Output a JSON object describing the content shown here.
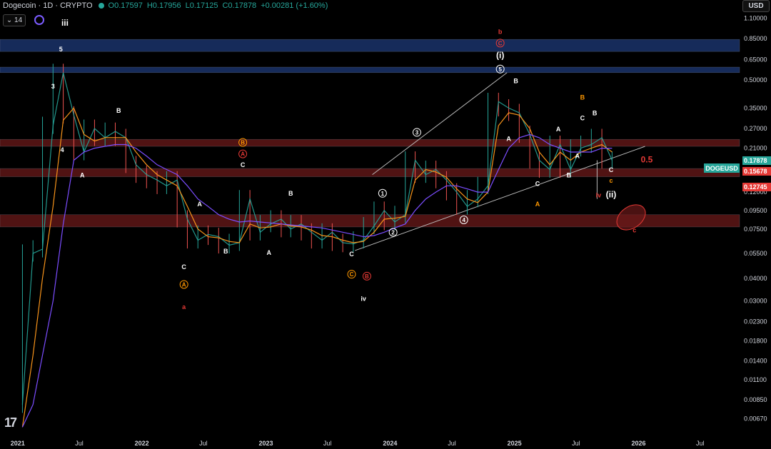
{
  "header": {
    "symbol": "Dogecoin · 1D · CRYPTO",
    "ohlc": [
      "O0.17597",
      "H0.17956",
      "L0.17125",
      "C0.17878",
      "+0.00281 (+1.60%)"
    ]
  },
  "toolbar": {
    "currency": "USD",
    "interval": "⌄ 14"
  },
  "logo": "17",
  "colors": {
    "up": "#26a69a",
    "down": "#ef5350",
    "ma_fast": "#f7931a",
    "ma_slow": "#7b4dff",
    "wave_white": "#ffffff",
    "wave_red": "#e53935",
    "wave_orange": "#ff9800"
  },
  "chart_data": {
    "type": "line",
    "scale": "log",
    "ylim": [
      0.0055,
      1.2
    ],
    "y_ticks": [
      "1.10000",
      "0.85000",
      "0.65000",
      "0.50000",
      "0.35000",
      "0.27000",
      "0.21000",
      "0.16000",
      "0.12000",
      "0.09500",
      "0.07500",
      "0.05500",
      "0.04000",
      "0.03000",
      "0.02300",
      "0.01800",
      "0.01400",
      "0.01100",
      "0.00850",
      "0.00670"
    ],
    "x_ticks": [
      "2021",
      "Jul",
      "2022",
      "Jul",
      "2023",
      "Jul",
      "2024",
      "Jul",
      "2025",
      "Jul",
      "2026",
      "Jul"
    ],
    "price_series": {
      "name": "DOGEUSD",
      "x": [
        "2021-01",
        "2021-02",
        "2021-03",
        "2021-04",
        "2021-05",
        "2021-06",
        "2021-07",
        "2021-08",
        "2021-09",
        "2021-10",
        "2021-11",
        "2021-12",
        "2022-01",
        "2022-02",
        "2022-03",
        "2022-04",
        "2022-05",
        "2022-06",
        "2022-07",
        "2022-08",
        "2022-09",
        "2022-10",
        "2022-11",
        "2022-12",
        "2023-01",
        "2023-02",
        "2023-03",
        "2023-04",
        "2023-05",
        "2023-06",
        "2023-07",
        "2023-08",
        "2023-09",
        "2023-10",
        "2023-11",
        "2023-12",
        "2024-01",
        "2024-02",
        "2024-03",
        "2024-04",
        "2024-05",
        "2024-06",
        "2024-07",
        "2024-08",
        "2024-09",
        "2024-10",
        "2024-11",
        "2024-12",
        "2025-01",
        "2025-02",
        "2025-03",
        "2025-04",
        "2025-05",
        "2025-06",
        "2025-07",
        "2025-08",
        "2025-09",
        "2025-10"
      ],
      "y": [
        0.008,
        0.055,
        0.058,
        0.28,
        0.55,
        0.32,
        0.2,
        0.27,
        0.24,
        0.26,
        0.24,
        0.17,
        0.15,
        0.14,
        0.13,
        0.14,
        0.085,
        0.065,
        0.07,
        0.068,
        0.061,
        0.063,
        0.11,
        0.072,
        0.08,
        0.085,
        0.075,
        0.08,
        0.072,
        0.065,
        0.072,
        0.063,
        0.062,
        0.065,
        0.078,
        0.095,
        0.082,
        0.09,
        0.18,
        0.15,
        0.16,
        0.14,
        0.12,
        0.1,
        0.11,
        0.13,
        0.38,
        0.35,
        0.33,
        0.25,
        0.18,
        0.16,
        0.22,
        0.16,
        0.21,
        0.22,
        0.24,
        0.18
      ]
    },
    "ma_fast": {
      "y": [
        0.006,
        0.015,
        0.04,
        0.1,
        0.3,
        0.35,
        0.25,
        0.23,
        0.24,
        0.24,
        0.24,
        0.2,
        0.17,
        0.15,
        0.14,
        0.13,
        0.1,
        0.075,
        0.068,
        0.067,
        0.064,
        0.063,
        0.08,
        0.076,
        0.077,
        0.08,
        0.078,
        0.077,
        0.074,
        0.069,
        0.068,
        0.065,
        0.063,
        0.064,
        0.072,
        0.085,
        0.086,
        0.088,
        0.14,
        0.16,
        0.155,
        0.145,
        0.125,
        0.11,
        0.105,
        0.12,
        0.28,
        0.33,
        0.32,
        0.27,
        0.2,
        0.17,
        0.2,
        0.18,
        0.2,
        0.21,
        0.22,
        0.2
      ]
    },
    "ma_slow": {
      "y": [
        0.006,
        0.008,
        0.015,
        0.03,
        0.08,
        0.18,
        0.2,
        0.21,
        0.215,
        0.22,
        0.22,
        0.21,
        0.19,
        0.17,
        0.16,
        0.15,
        0.13,
        0.11,
        0.1,
        0.09,
        0.085,
        0.082,
        0.083,
        0.082,
        0.081,
        0.08,
        0.079,
        0.078,
        0.077,
        0.076,
        0.074,
        0.072,
        0.07,
        0.068,
        0.069,
        0.072,
        0.076,
        0.08,
        0.095,
        0.11,
        0.12,
        0.13,
        0.13,
        0.125,
        0.12,
        0.12,
        0.16,
        0.21,
        0.24,
        0.25,
        0.24,
        0.22,
        0.21,
        0.2,
        0.2,
        0.2,
        0.21,
        0.21
      ]
    },
    "zones": [
      {
        "from": 0.72,
        "to": 0.84,
        "color": "#1e3a78"
      },
      {
        "from": 0.55,
        "to": 0.59,
        "color": "#1e3a78"
      },
      {
        "from": 0.215,
        "to": 0.235,
        "color": "#6b1a1a"
      },
      {
        "from": 0.146,
        "to": 0.162,
        "color": "#6b1a1a"
      },
      {
        "from": 0.077,
        "to": 0.09,
        "color": "#6b1a1a"
      }
    ],
    "price_tags": [
      {
        "label": "DOGEUSD",
        "value": "0.17878",
        "color": "#26a69a"
      },
      {
        "label": "",
        "value": "0.15678",
        "color": "#e53935"
      },
      {
        "label": "",
        "value": "0.12745",
        "color": "#e53935"
      }
    ],
    "annotations": [
      {
        "text": "iii",
        "color": "#ffffff",
        "x": "2021-05-20",
        "y": 1.0,
        "style": "plain"
      },
      {
        "text": "5",
        "color": "#ffffff",
        "x": "2021-05-08",
        "y": 0.72,
        "style": "plain"
      },
      {
        "text": "3",
        "color": "#ffffff",
        "x": "2021-04-15",
        "y": 0.45,
        "style": "plain"
      },
      {
        "text": "4",
        "color": "#ffffff",
        "x": "2021-05-12",
        "y": 0.2,
        "style": "plain"
      },
      {
        "text": "B",
        "color": "#ffffff",
        "x": "2021-10-25",
        "y": 0.33,
        "style": "plain"
      },
      {
        "text": "A",
        "color": "#ffffff",
        "x": "2021-07-10",
        "y": 0.145,
        "style": "plain"
      },
      {
        "text": "A",
        "color": "#ffffff",
        "x": "2022-06-20",
        "y": 0.1,
        "style": "plain"
      },
      {
        "text": "C",
        "color": "#ffffff",
        "x": "2022-05-05",
        "y": 0.045,
        "style": "plain"
      },
      {
        "text": "A",
        "color": "#ff9800",
        "x": "2022-05-05",
        "y": 0.036,
        "style": "circle"
      },
      {
        "text": "a",
        "color": "#e53935",
        "x": "2022-05-05",
        "y": 0.027,
        "style": "plain"
      },
      {
        "text": "B",
        "color": "#ffffff",
        "x": "2022-09-05",
        "y": 0.055,
        "style": "plain"
      },
      {
        "text": "B",
        "color": "#ff9800",
        "x": "2022-10-25",
        "y": 0.22,
        "style": "circle"
      },
      {
        "text": "A",
        "color": "#e53935",
        "x": "2022-10-25",
        "y": 0.19,
        "style": "circle"
      },
      {
        "text": "C",
        "color": "#ffffff",
        "x": "2022-10-25",
        "y": 0.165,
        "style": "plain"
      },
      {
        "text": "A",
        "color": "#ffffff",
        "x": "2023-01-10",
        "y": 0.054,
        "style": "plain"
      },
      {
        "text": "B",
        "color": "#ffffff",
        "x": "2023-03-15",
        "y": 0.115,
        "style": "plain"
      },
      {
        "text": "C",
        "color": "#ffffff",
        "x": "2023-09-10",
        "y": 0.053,
        "style": "plain"
      },
      {
        "text": "C",
        "color": "#ff9800",
        "x": "2023-09-10",
        "y": 0.041,
        "style": "circle"
      },
      {
        "text": "B",
        "color": "#e53935",
        "x": "2023-10-25",
        "y": 0.04,
        "style": "circle"
      },
      {
        "text": "iv",
        "color": "#ffffff",
        "x": "2023-10-15",
        "y": 0.03,
        "style": "plain"
      },
      {
        "text": "1",
        "color": "#ffffff",
        "x": "2023-12-10",
        "y": 0.115,
        "style": "circle"
      },
      {
        "text": "2",
        "color": "#ffffff",
        "x": "2024-01-10",
        "y": 0.07,
        "style": "circle"
      },
      {
        "text": "3",
        "color": "#ffffff",
        "x": "2024-03-20",
        "y": 0.25,
        "style": "circle"
      },
      {
        "text": "4",
        "color": "#ffffff",
        "x": "2024-08-05",
        "y": 0.082,
        "style": "circle"
      },
      {
        "text": "5",
        "color": "#ffffff",
        "x": "2024-11-20",
        "y": 0.56,
        "style": "circle"
      },
      {
        "text": "(i)",
        "color": "#ffffff",
        "x": "2024-11-20",
        "y": 0.66,
        "style": "plain"
      },
      {
        "text": "C",
        "color": "#e53935",
        "x": "2024-11-20",
        "y": 0.78,
        "style": "circle"
      },
      {
        "text": "b",
        "color": "#e53935",
        "x": "2024-11-20",
        "y": 0.9,
        "style": "plain"
      },
      {
        "text": "B",
        "color": "#ffffff",
        "x": "2025-01-05",
        "y": 0.48,
        "style": "plain"
      },
      {
        "text": "A",
        "color": "#ffffff",
        "x": "2024-12-15",
        "y": 0.23,
        "style": "plain"
      },
      {
        "text": "C",
        "color": "#ffffff",
        "x": "2025-03-10",
        "y": 0.13,
        "style": "plain"
      },
      {
        "text": "A",
        "color": "#ff9800",
        "x": "2025-03-10",
        "y": 0.1,
        "style": "plain"
      },
      {
        "text": "A",
        "color": "#ffffff",
        "x": "2025-05-10",
        "y": 0.26,
        "style": "plain"
      },
      {
        "text": "B",
        "color": "#ffffff",
        "x": "2025-06-10",
        "y": 0.145,
        "style": "plain"
      },
      {
        "text": "A",
        "color": "#ffffff",
        "x": "2025-07-05",
        "y": 0.185,
        "style": "plain"
      },
      {
        "text": "C",
        "color": "#ffffff",
        "x": "2025-07-20",
        "y": 0.3,
        "style": "plain"
      },
      {
        "text": "B",
        "color": "#ff9800",
        "x": "2025-07-20",
        "y": 0.39,
        "style": "plain"
      },
      {
        "text": "B",
        "color": "#ffffff",
        "x": "2025-08-25",
        "y": 0.32,
        "style": "plain"
      },
      {
        "text": "C",
        "color": "#ffffff",
        "x": "2025-10-12",
        "y": 0.155,
        "style": "plain"
      },
      {
        "text": "c",
        "color": "#ff9800",
        "x": "2025-10-12",
        "y": 0.135,
        "style": "plain"
      },
      {
        "text": "iv",
        "color": "#e53935",
        "x": "2025-09-05",
        "y": 0.112,
        "style": "plain"
      },
      {
        "text": "(ii)",
        "color": "#ffffff",
        "x": "2025-10-12",
        "y": 0.112,
        "style": "plain"
      },
      {
        "text": "0.5",
        "color": "#e53935",
        "x": "2026-01-25",
        "y": 0.175,
        "style": "plain"
      },
      {
        "text": "c",
        "color": "#e53935",
        "x": "2025-12-20",
        "y": 0.072,
        "style": "plain"
      }
    ]
  }
}
